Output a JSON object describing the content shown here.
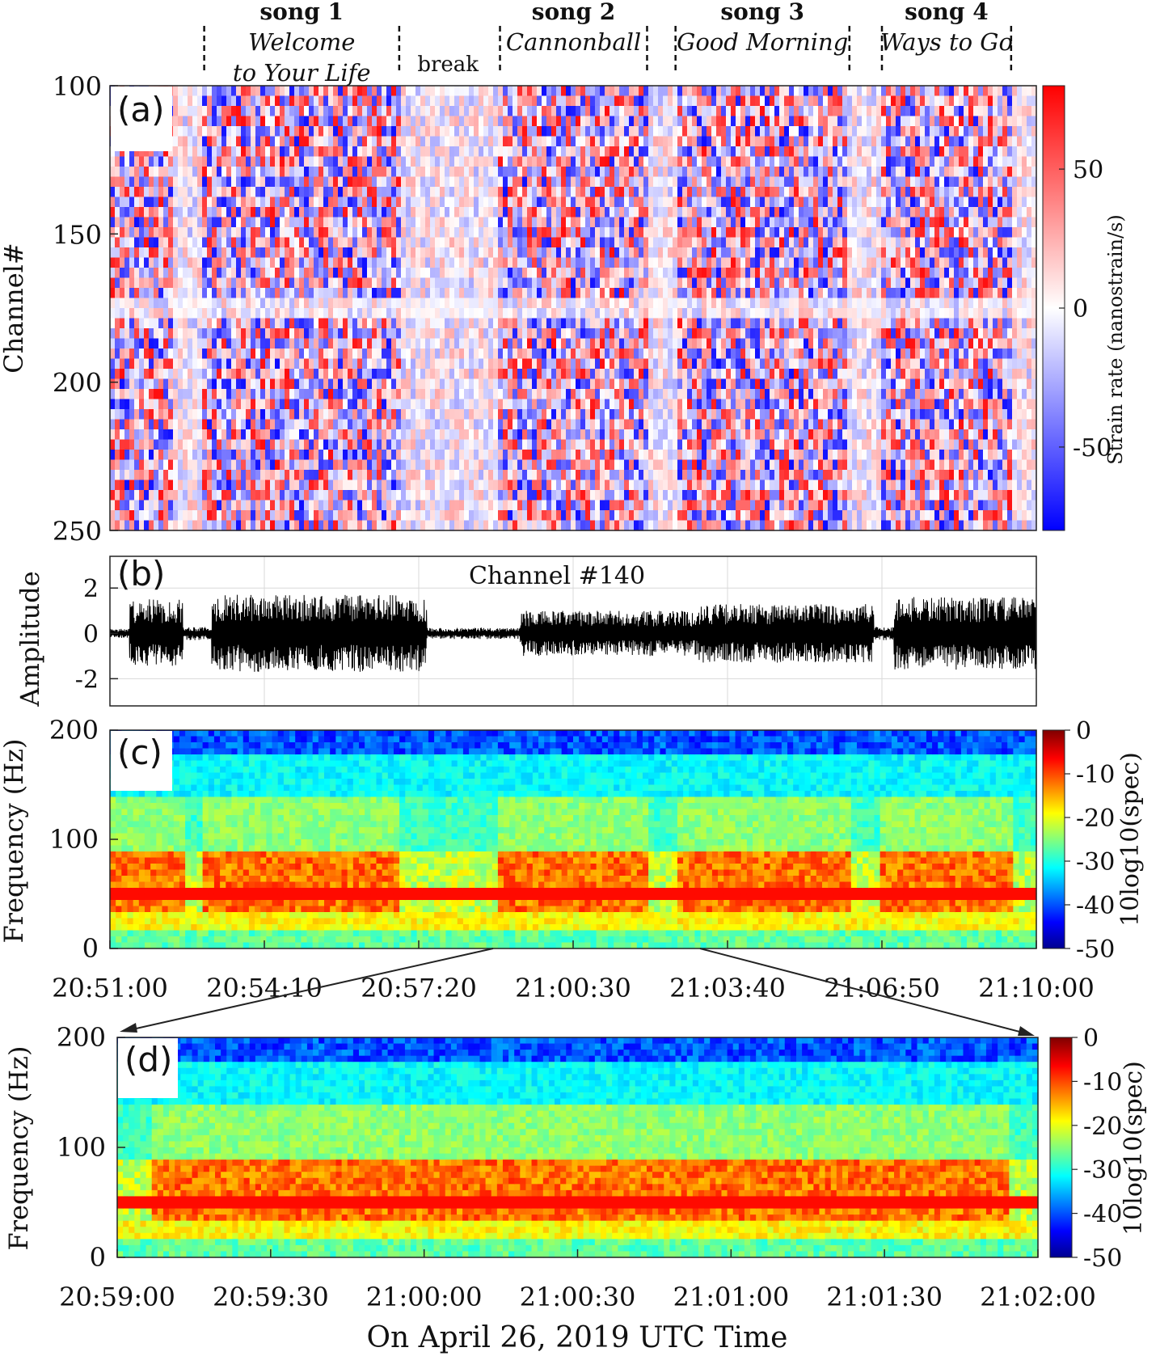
{
  "chart_data": [
    {
      "id": "a",
      "type": "heatmap",
      "panel_label": "(a)",
      "ylabel": "Channel#",
      "ylim": [
        100,
        250
      ],
      "yticks": [
        "100",
        "150",
        "200",
        "250"
      ],
      "colorbar": {
        "label": "Strain rate (nanostrain/s)",
        "range": [
          -80,
          80
        ],
        "ticks": [
          "50",
          "0",
          "-50"
        ],
        "tick_values": [
          50,
          0,
          -50
        ],
        "colors": [
          "#0000ff",
          "#ffffff",
          "#ff0000"
        ]
      },
      "songs": [
        {
          "title": "song 1",
          "name_lines": [
            "Welcome",
            "to Your Life"
          ],
          "start": "20:52:56",
          "end": "20:56:56"
        },
        {
          "break": "break",
          "start": "20:56:56",
          "end": "20:58:56"
        },
        {
          "title": "song 2",
          "name_lines": [
            "Cannonball"
          ],
          "start": "20:59:00",
          "end": "21:02:01"
        },
        {
          "title": "song 3",
          "name_lines": [
            "Good Morning"
          ],
          "start": "21:02:36",
          "end": "21:06:10"
        },
        {
          "title": "song 4",
          "name_lines": [
            "Ways to Go"
          ],
          "start": "21:06:50",
          "end": "21:09:29"
        }
      ]
    },
    {
      "id": "b",
      "type": "line",
      "panel_label": "(b)",
      "title": "Channel #140",
      "ylabel": "Amplitude",
      "ylim": [
        -3.2,
        3.4
      ],
      "yticks": [
        "2",
        "0",
        "-2"
      ],
      "ytick_values": [
        2,
        0,
        -2
      ],
      "grid": true,
      "envelope": {
        "description_values": "peak amplitude by time segment",
        "segments": [
          {
            "start": "20:51:00",
            "end": "20:51:24",
            "amp": 0.2
          },
          {
            "start": "20:51:24",
            "end": "20:52:30",
            "amp": 1.5
          },
          {
            "start": "20:52:30",
            "end": "20:53:05",
            "amp": 0.3
          },
          {
            "start": "20:53:05",
            "end": "20:57:30",
            "amp": 1.7
          },
          {
            "start": "20:57:30",
            "end": "20:59:25",
            "amp": 0.25
          },
          {
            "start": "20:59:25",
            "end": "21:03:05",
            "amp": 1.0
          },
          {
            "start": "21:03:05",
            "end": "21:06:40",
            "amp": 1.3
          },
          {
            "start": "21:06:40",
            "end": "21:07:05",
            "amp": 0.3
          },
          {
            "start": "21:07:05",
            "end": "21:10:00",
            "amp": 1.6
          }
        ]
      }
    },
    {
      "id": "c",
      "type": "heatmap",
      "panel_label": "(c)",
      "ylabel": "Frequency (Hz)",
      "ylim": [
        0,
        200
      ],
      "yticks": [
        "200",
        "100",
        "0"
      ],
      "ytick_values": [
        200,
        100,
        0
      ],
      "xlim": [
        "20:51:00",
        "21:10:00"
      ],
      "xticks": [
        "20:51:00",
        "20:54:10",
        "20:57:20",
        "21:00:30",
        "21:03:40",
        "21:06:50",
        "21:10:00"
      ],
      "colorbar": {
        "label": "10log10(spec)",
        "range": [
          -50,
          0
        ],
        "ticks": [
          "0",
          "-10",
          "-20",
          "-30",
          "-40",
          "-50"
        ],
        "tick_values": [
          0,
          -10,
          -20,
          -30,
          -40,
          -50
        ],
        "colors": [
          "#00008f",
          "#0000ff",
          "#00ffff",
          "#ffff00",
          "#ff0000",
          "#800000"
        ]
      }
    },
    {
      "id": "d",
      "type": "heatmap",
      "panel_label": "(d)",
      "ylabel": "Frequency (Hz)",
      "ylim": [
        0,
        200
      ],
      "yticks": [
        "200",
        "100",
        "0"
      ],
      "ytick_values": [
        200,
        100,
        0
      ],
      "xlim": [
        "20:59:00",
        "21:02:00"
      ],
      "xticks": [
        "20:59:00",
        "20:59:30",
        "21:00:00",
        "21:00:30",
        "21:01:00",
        "21:01:30",
        "21:02:00"
      ],
      "xlabel": "On April 26, 2019 UTC Time",
      "colorbar": {
        "label": "10log10(spec)",
        "range": [
          -50,
          0
        ],
        "ticks": [
          "0",
          "-10",
          "-20",
          "-30",
          "-40",
          "-50"
        ],
        "tick_values": [
          0,
          -10,
          -20,
          -30,
          -40,
          -50
        ],
        "colors": [
          "#00008f",
          "#0000ff",
          "#00ffff",
          "#ffff00",
          "#ff0000",
          "#800000"
        ]
      }
    }
  ]
}
